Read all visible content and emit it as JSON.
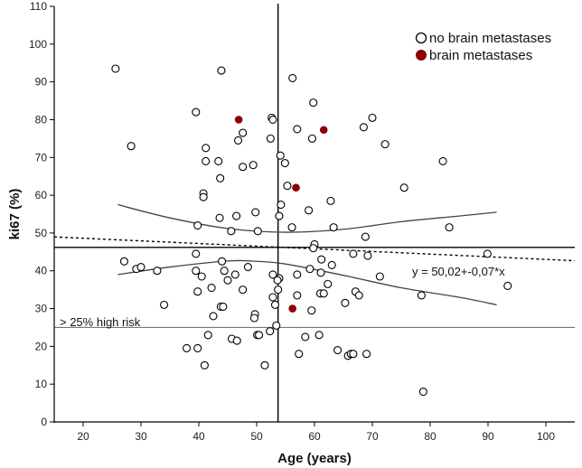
{
  "chart_data": {
    "type": "scatter",
    "title": "",
    "xlabel": "Age (years)",
    "ylabel": "ki67 (%)",
    "xlim": [
      15,
      105
    ],
    "ylim": [
      0,
      110
    ],
    "xticks": [
      20,
      30,
      40,
      50,
      60,
      70,
      80,
      90,
      100
    ],
    "yticks": [
      0,
      10,
      20,
      30,
      40,
      50,
      60,
      70,
      80,
      90,
      100,
      110
    ],
    "legend": {
      "position": "top-right",
      "entries": [
        {
          "label": "no brain metastases",
          "marker": "open-circle"
        },
        {
          "label": "brain metastases",
          "marker": "filled-circle",
          "color": "#8b0000"
        }
      ]
    },
    "series": [
      {
        "name": "no brain metastases",
        "marker": "open-circle",
        "points": [
          [
            25.6,
            93.5
          ],
          [
            43.9,
            93
          ],
          [
            28.3,
            73
          ],
          [
            39.5,
            82
          ],
          [
            41.2,
            72.5
          ],
          [
            41.2,
            69
          ],
          [
            43.4,
            69
          ],
          [
            43.7,
            64.5
          ],
          [
            40.8,
            60.5
          ],
          [
            40.8,
            59.5
          ],
          [
            47.6,
            76.5
          ],
          [
            46.8,
            74.5
          ],
          [
            47.6,
            67.5
          ],
          [
            49.4,
            68
          ],
          [
            46.5,
            54.5
          ],
          [
            43.6,
            54
          ],
          [
            39.8,
            52
          ],
          [
            45.6,
            50.5
          ],
          [
            49.8,
            55.5
          ],
          [
            50.2,
            50.5
          ],
          [
            52.4,
            75
          ],
          [
            52.6,
            80.5
          ],
          [
            52.8,
            80
          ],
          [
            56.2,
            91
          ],
          [
            57.0,
            77.5
          ],
          [
            59.8,
            84.5
          ],
          [
            59.6,
            75
          ],
          [
            54.1,
            70.5
          ],
          [
            54.9,
            68.5
          ],
          [
            55.3,
            62.5
          ],
          [
            53.9,
            54.5
          ],
          [
            54.2,
            57.5
          ],
          [
            56.1,
            51.5
          ],
          [
            59.0,
            56
          ],
          [
            62.8,
            58.5
          ],
          [
            63.3,
            51.5
          ],
          [
            60.0,
            47
          ],
          [
            59.8,
            46
          ],
          [
            68.5,
            78
          ],
          [
            70.0,
            80.5
          ],
          [
            72.2,
            73.5
          ],
          [
            68.8,
            49
          ],
          [
            75.5,
            62
          ],
          [
            82.2,
            69
          ],
          [
            83.3,
            51.5
          ],
          [
            27.1,
            42.5
          ],
          [
            29.2,
            40.5
          ],
          [
            30.0,
            41
          ],
          [
            32.8,
            40
          ],
          [
            39.5,
            40
          ],
          [
            34.0,
            31
          ],
          [
            39.5,
            44.5
          ],
          [
            40.5,
            38.5
          ],
          [
            39.8,
            34.5
          ],
          [
            42.2,
            35.5
          ],
          [
            44.0,
            42.5
          ],
          [
            44.4,
            40
          ],
          [
            45.0,
            37.5
          ],
          [
            46.3,
            39
          ],
          [
            48.5,
            41
          ],
          [
            47.6,
            35
          ],
          [
            43.8,
            30.5
          ],
          [
            44.2,
            30.5
          ],
          [
            42.5,
            28
          ],
          [
            49.7,
            28.5
          ],
          [
            49.6,
            27.5
          ],
          [
            52.8,
            39
          ],
          [
            53.9,
            38
          ],
          [
            53.6,
            37.5
          ],
          [
            53.7,
            35
          ],
          [
            53.2,
            31
          ],
          [
            52.8,
            33
          ],
          [
            57.0,
            39
          ],
          [
            57.0,
            33.5
          ],
          [
            59.2,
            40.5
          ],
          [
            61.1,
            39.5
          ],
          [
            61.2,
            43
          ],
          [
            62.3,
            36.5
          ],
          [
            61.0,
            34
          ],
          [
            61.6,
            34
          ],
          [
            59.5,
            29.5
          ],
          [
            63.0,
            41.5
          ],
          [
            66.7,
            44.5
          ],
          [
            67.1,
            34.5
          ],
          [
            67.7,
            33.5
          ],
          [
            65.3,
            31.5
          ],
          [
            69.2,
            44
          ],
          [
            71.3,
            38.5
          ],
          [
            78.5,
            33.5
          ],
          [
            89.9,
            44.5
          ],
          [
            93.4,
            36
          ],
          [
            53.4,
            25.5
          ],
          [
            37.9,
            19.5
          ],
          [
            39.8,
            19.5
          ],
          [
            41.6,
            23
          ],
          [
            41.0,
            15
          ],
          [
            45.7,
            22
          ],
          [
            46.6,
            21.5
          ],
          [
            50.1,
            23
          ],
          [
            50.4,
            23
          ],
          [
            51.4,
            15
          ],
          [
            52.3,
            24
          ],
          [
            57.3,
            18
          ],
          [
            58.4,
            22.5
          ],
          [
            60.8,
            23
          ],
          [
            64.0,
            19
          ],
          [
            65.8,
            17.5
          ],
          [
            66.3,
            18
          ],
          [
            66.7,
            18
          ],
          [
            69.0,
            18
          ],
          [
            78.8,
            8
          ]
        ]
      },
      {
        "name": "brain metastases",
        "marker": "filled-circle",
        "color": "#8b0000",
        "points": [
          [
            46.9,
            80
          ],
          [
            61.6,
            77.3
          ],
          [
            56.8,
            62
          ],
          [
            56.2,
            30
          ]
        ]
      }
    ],
    "reference_lines": {
      "vertical_x": 53.7,
      "horizontal_y": 46.2,
      "threshold_y": 25,
      "threshold_label": "> 25%  high risk"
    },
    "fit_line": {
      "intercept": 50.02,
      "slope": -0.07,
      "style": "dotted",
      "equation_label": "y = 50,02+-0,07*x"
    },
    "confidence_band": {
      "upper": [
        [
          26,
          57.5
        ],
        [
          35,
          54
        ],
        [
          45,
          51.2
        ],
        [
          55,
          50.2
        ],
        [
          65,
          51
        ],
        [
          75,
          53
        ],
        [
          85,
          54.5
        ],
        [
          91.5,
          55.5
        ]
      ],
      "lower": [
        [
          26,
          39
        ],
        [
          35,
          41
        ],
        [
          45,
          42.6
        ],
        [
          50,
          42.5
        ],
        [
          55,
          41.8
        ],
        [
          65,
          38.8
        ],
        [
          75,
          35.5
        ],
        [
          85,
          33
        ],
        [
          91.5,
          31
        ]
      ]
    }
  }
}
